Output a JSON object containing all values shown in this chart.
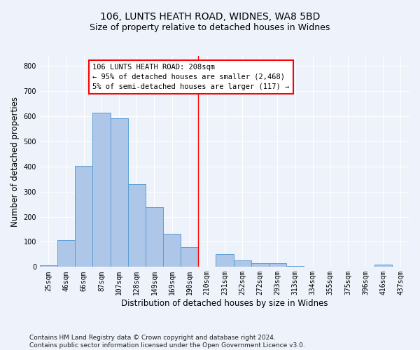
{
  "title1": "106, LUNTS HEATH ROAD, WIDNES, WA8 5BD",
  "title2": "Size of property relative to detached houses in Widnes",
  "xlabel": "Distribution of detached houses by size in Widnes",
  "ylabel": "Number of detached properties",
  "footnote": "Contains HM Land Registry data © Crown copyright and database right 2024.\nContains public sector information licensed under the Open Government Licence v3.0.",
  "categories": [
    "25sqm",
    "46sqm",
    "66sqm",
    "87sqm",
    "107sqm",
    "128sqm",
    "149sqm",
    "169sqm",
    "190sqm",
    "210sqm",
    "231sqm",
    "252sqm",
    "272sqm",
    "293sqm",
    "313sqm",
    "334sqm",
    "355sqm",
    "375sqm",
    "396sqm",
    "416sqm",
    "437sqm"
  ],
  "values": [
    7,
    107,
    403,
    615,
    592,
    330,
    237,
    133,
    78,
    0,
    51,
    25,
    14,
    16,
    3,
    0,
    0,
    0,
    0,
    8,
    0
  ],
  "bar_color": "#aec6e8",
  "bar_edge_color": "#5a9fd4",
  "vline_x_index": 9.0,
  "annotation_text_line1": "106 LUNTS HEATH ROAD: 208sqm",
  "annotation_text_line2": "← 95% of detached houses are smaller (2,468)",
  "annotation_text_line3": "5% of semi-detached houses are larger (117) →",
  "ylim": [
    0,
    840
  ],
  "yticks": [
    0,
    100,
    200,
    300,
    400,
    500,
    600,
    700,
    800
  ],
  "bg_color": "#eef2fa",
  "grid_color": "#ffffff",
  "title_fontsize": 10,
  "subtitle_fontsize": 9,
  "xlabel_fontsize": 8.5,
  "ylabel_fontsize": 8.5,
  "tick_fontsize": 7,
  "annotation_fontsize": 7.5,
  "footnote_fontsize": 6.5
}
